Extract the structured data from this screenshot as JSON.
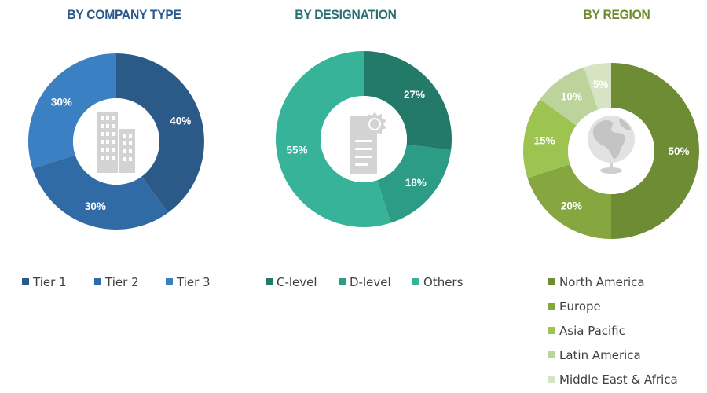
{
  "chart_data": [
    {
      "type": "pie",
      "title": "BY COMPANY TYPE",
      "title_color": "#2a5a8c",
      "categories": [
        "Tier 1",
        "Tier 2",
        "Tier 3"
      ],
      "values": [
        40,
        30,
        30
      ],
      "value_labels": [
        "40%",
        "30%",
        "30%"
      ],
      "colors": [
        "#2b5a89",
        "#316ba6",
        "#3a80c2"
      ],
      "legend": "bottom",
      "center_icon": "building-icon"
    },
    {
      "type": "pie",
      "title": "BY DESIGNATION",
      "title_color": "#2a6f73",
      "categories": [
        "C-level",
        "D-level",
        "Others"
      ],
      "values": [
        27,
        18,
        55
      ],
      "value_labels": [
        "27%",
        "18%",
        "55%"
      ],
      "colors": [
        "#247a68",
        "#2d9c86",
        "#37b39a"
      ],
      "legend": "bottom",
      "center_icon": "certificate-document-icon"
    },
    {
      "type": "pie",
      "title": "BY REGION",
      "title_color": "#6f8a2e",
      "categories": [
        "North America",
        "Europe",
        "Asia Pacific",
        "Latin America",
        "Middle East & Africa"
      ],
      "values": [
        50,
        20,
        15,
        10,
        5
      ],
      "value_labels": [
        "50%",
        "20%",
        "15%",
        "10%",
        "5%"
      ],
      "colors": [
        "#6e8c34",
        "#86a63f",
        "#9dc450",
        "#bcd39b",
        "#d7e4c3"
      ],
      "legend": "bottom",
      "center_icon": "globe-icon"
    }
  ]
}
